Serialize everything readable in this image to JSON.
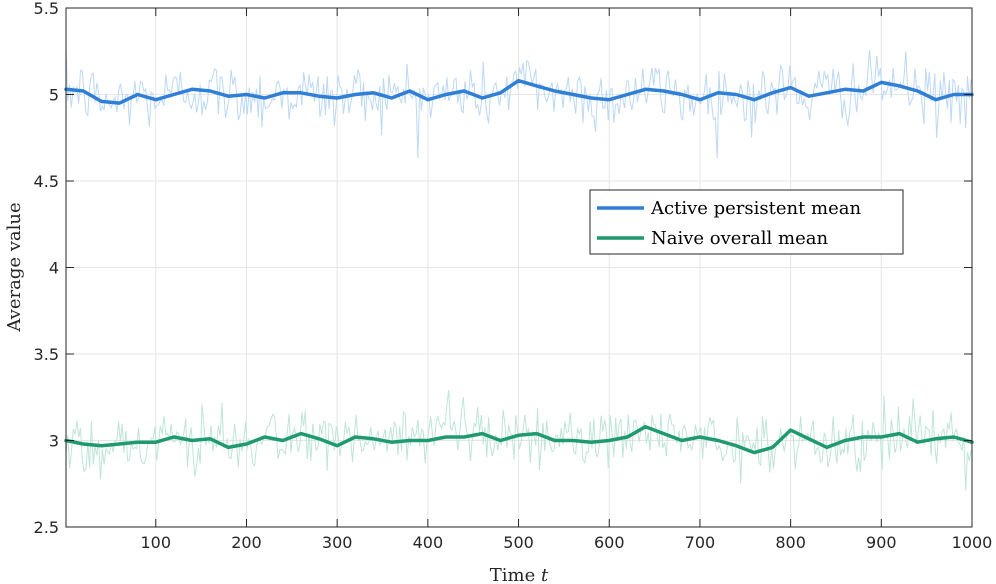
{
  "chart_data": {
    "type": "line",
    "title": "",
    "xlabel": "Time",
    "xlabel_var": "t",
    "ylabel": "Average value",
    "xlim": [
      1,
      1000
    ],
    "ylim": [
      2.5,
      5.5
    ],
    "xticks": [
      100,
      200,
      300,
      400,
      500,
      600,
      700,
      800,
      900,
      1000
    ],
    "yticks": [
      2.5,
      3,
      3.5,
      4,
      4.5,
      5,
      5.5
    ],
    "ytick_labels": [
      "2.5",
      "3",
      "3.5",
      "4",
      "4.5",
      "5",
      "5.5"
    ],
    "grid": true,
    "legend_position": "center-right",
    "series": [
      {
        "name": "Active persistent mean",
        "color": "#2f7fd6",
        "raw_color": "#bcd8f4",
        "x": [
          1,
          20,
          40,
          60,
          80,
          100,
          120,
          140,
          160,
          180,
          200,
          220,
          240,
          260,
          280,
          300,
          320,
          340,
          360,
          380,
          400,
          420,
          440,
          460,
          480,
          500,
          520,
          540,
          560,
          580,
          600,
          620,
          640,
          660,
          680,
          700,
          720,
          740,
          760,
          780,
          800,
          820,
          840,
          860,
          880,
          900,
          920,
          940,
          960,
          980,
          1000
        ],
        "values": [
          5.03,
          5.02,
          4.96,
          4.95,
          5.0,
          4.97,
          5.0,
          5.03,
          5.02,
          4.99,
          5.0,
          4.98,
          5.01,
          5.01,
          4.99,
          4.98,
          5.0,
          5.01,
          4.98,
          5.02,
          4.97,
          5.0,
          5.02,
          4.98,
          5.01,
          5.08,
          5.05,
          5.02,
          5.0,
          4.98,
          4.97,
          5.0,
          5.03,
          5.02,
          5.0,
          4.97,
          5.01,
          5.0,
          4.97,
          5.01,
          5.04,
          4.99,
          5.01,
          5.03,
          5.02,
          5.07,
          5.05,
          5.02,
          4.97,
          5.0,
          5.0
        ]
      },
      {
        "name": "Naive overall mean",
        "color": "#1e9970",
        "raw_color": "#bfe5d6",
        "x": [
          1,
          20,
          40,
          60,
          80,
          100,
          120,
          140,
          160,
          180,
          200,
          220,
          240,
          260,
          280,
          300,
          320,
          340,
          360,
          380,
          400,
          420,
          440,
          460,
          480,
          500,
          520,
          540,
          560,
          580,
          600,
          620,
          640,
          660,
          680,
          700,
          720,
          740,
          760,
          780,
          800,
          820,
          840,
          860,
          880,
          900,
          920,
          940,
          960,
          980,
          1000
        ],
        "values": [
          3.0,
          2.98,
          2.97,
          2.98,
          2.99,
          2.99,
          3.02,
          3.0,
          3.01,
          2.96,
          2.98,
          3.02,
          3.0,
          3.04,
          3.01,
          2.97,
          3.02,
          3.01,
          2.99,
          3.0,
          3.0,
          3.02,
          3.02,
          3.04,
          3.0,
          3.03,
          3.04,
          3.0,
          3.0,
          2.99,
          3.0,
          3.02,
          3.08,
          3.04,
          3.0,
          3.02,
          3.0,
          2.97,
          2.93,
          2.96,
          3.06,
          3.01,
          2.96,
          3.0,
          3.02,
          3.02,
          3.04,
          2.99,
          3.01,
          3.02,
          2.99
        ]
      }
    ]
  }
}
